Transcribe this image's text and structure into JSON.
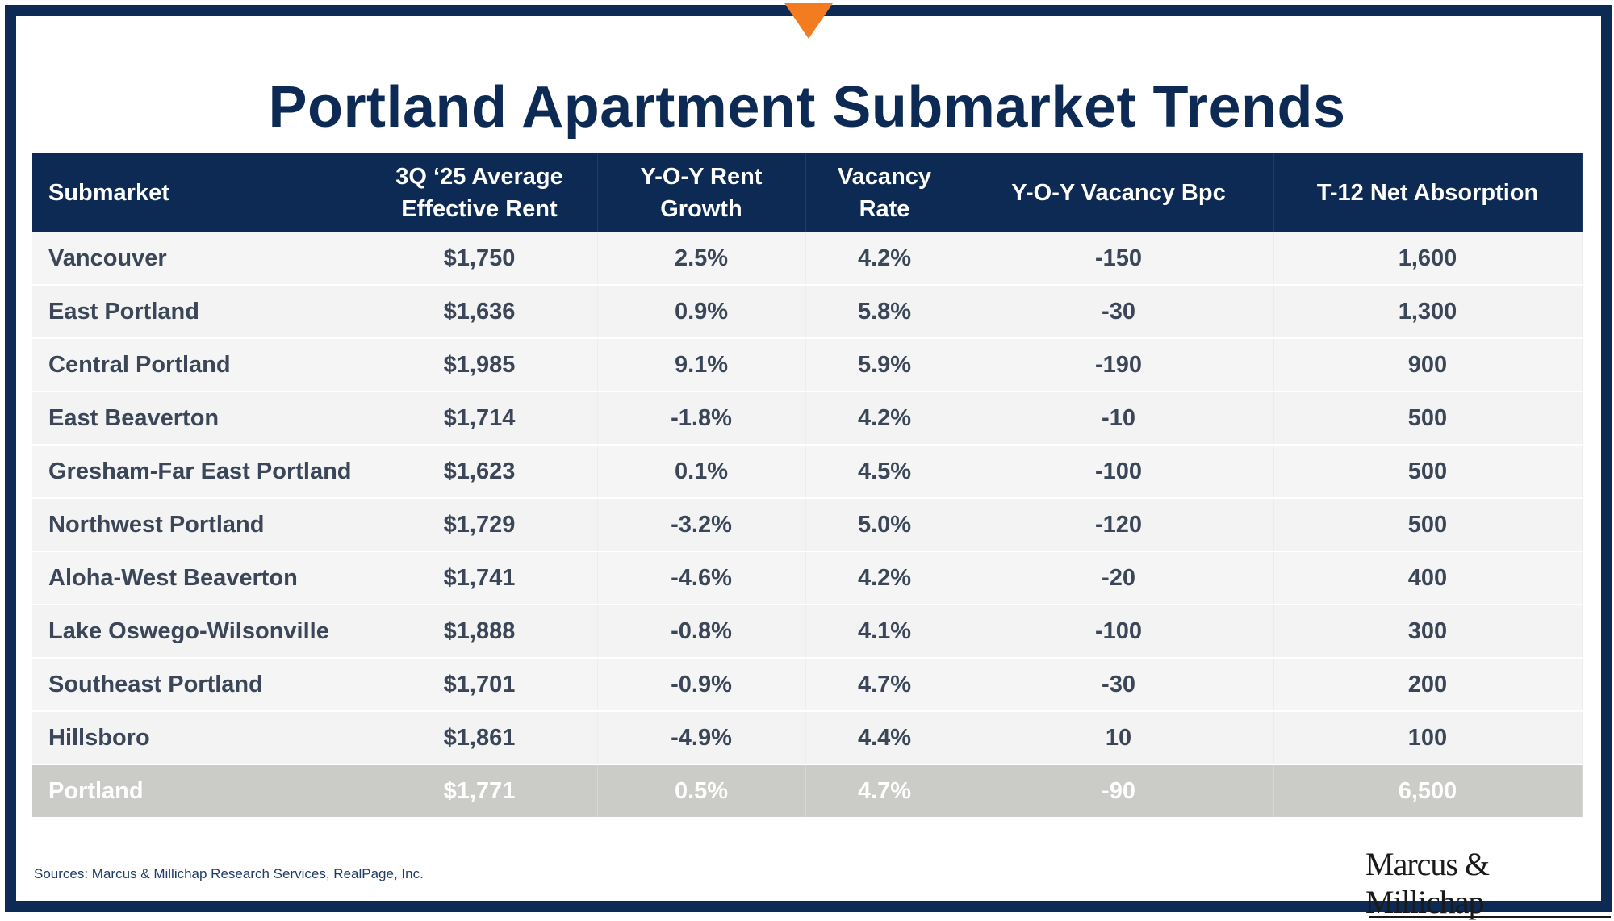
{
  "title": "Portland Apartment Submarket Trends",
  "colors": {
    "navy": "#0c2a53",
    "accent_orange": "#f47c20",
    "total_row": "#cbccc8"
  },
  "table": {
    "headers": [
      "Submarket",
      "3Q ‘25 Average Effective Rent",
      "Y-O-Y Rent Growth",
      "Vacancy Rate",
      "Y-O-Y Vacancy Bpc",
      "T-12 Net Absorption"
    ],
    "rows": [
      [
        "Vancouver",
        "$1,750",
        "2.5%",
        "4.2%",
        "-150",
        "1,600"
      ],
      [
        "East Portland",
        "$1,636",
        "0.9%",
        "5.8%",
        "-30",
        "1,300"
      ],
      [
        "Central Portland",
        "$1,985",
        "9.1%",
        "5.9%",
        "-190",
        "900"
      ],
      [
        "East Beaverton",
        "$1,714",
        "-1.8%",
        "4.2%",
        "-10",
        "500"
      ],
      [
        "Gresham-Far East Portland",
        "$1,623",
        "0.1%",
        "4.5%",
        "-100",
        "500"
      ],
      [
        "Northwest Portland",
        "$1,729",
        "-3.2%",
        "5.0%",
        "-120",
        "500"
      ],
      [
        "Aloha-West Beaverton",
        "$1,741",
        "-4.6%",
        "4.2%",
        "-20",
        "400"
      ],
      [
        "Lake Oswego-Wilsonville",
        "$1,888",
        "-0.8%",
        "4.1%",
        "-100",
        "300"
      ],
      [
        "Southeast Portland",
        "$1,701",
        "-0.9%",
        "4.7%",
        "-30",
        "200"
      ],
      [
        "Hillsboro",
        "$1,861",
        "-4.9%",
        "4.4%",
        "10",
        "100"
      ]
    ],
    "total": [
      "Portland",
      "$1,771",
      "0.5%",
      "4.7%",
      "-90",
      "6,500"
    ]
  },
  "sources": "Sources: Marcus & Millichap Research Services, RealPage, Inc.",
  "logo_text": "Marcus & Millichap"
}
